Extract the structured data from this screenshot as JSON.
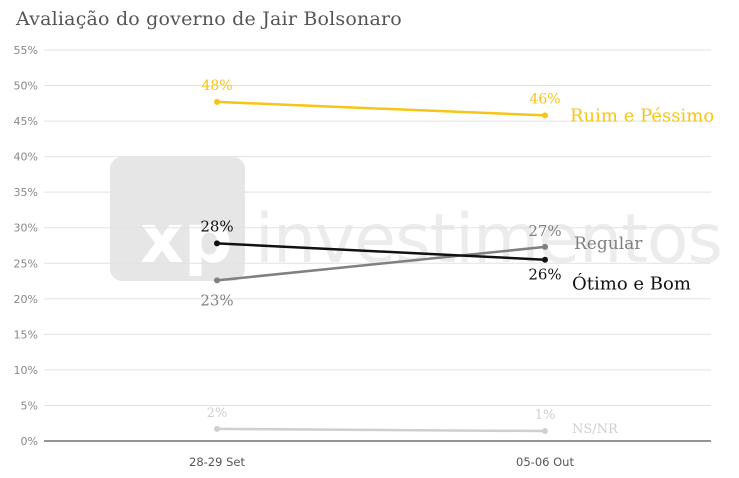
{
  "chart_data": {
    "type": "line",
    "title": "Avaliação do governo de Jair Bolsonaro",
    "categories": [
      "28-29 Set",
      "05-06 Out"
    ],
    "y_ticks": [
      "0%",
      "5%",
      "10%",
      "15%",
      "20%",
      "25%",
      "30%",
      "35%",
      "40%",
      "45%",
      "50%",
      "55%"
    ],
    "ylim": [
      0,
      55
    ],
    "grid": true,
    "watermark": "xp investimentos",
    "series": [
      {
        "name": "Ruim e Péssimo",
        "values": [
          47.7,
          45.8
        ],
        "labels": [
          "48%",
          "46%"
        ],
        "color": "#F5C518"
      },
      {
        "name": "Regular",
        "values": [
          22.6,
          27.3
        ],
        "labels": [
          "23%",
          "27%"
        ],
        "color": "#808080"
      },
      {
        "name": "Ótimo e Bom",
        "values": [
          27.8,
          25.5
        ],
        "labels": [
          "28%",
          "26%"
        ],
        "color": "#111111"
      },
      {
        "name": "NS/NR",
        "values": [
          1.7,
          1.4
        ],
        "labels": [
          "2%",
          "1%"
        ],
        "color": "#CFCFCF"
      }
    ]
  }
}
